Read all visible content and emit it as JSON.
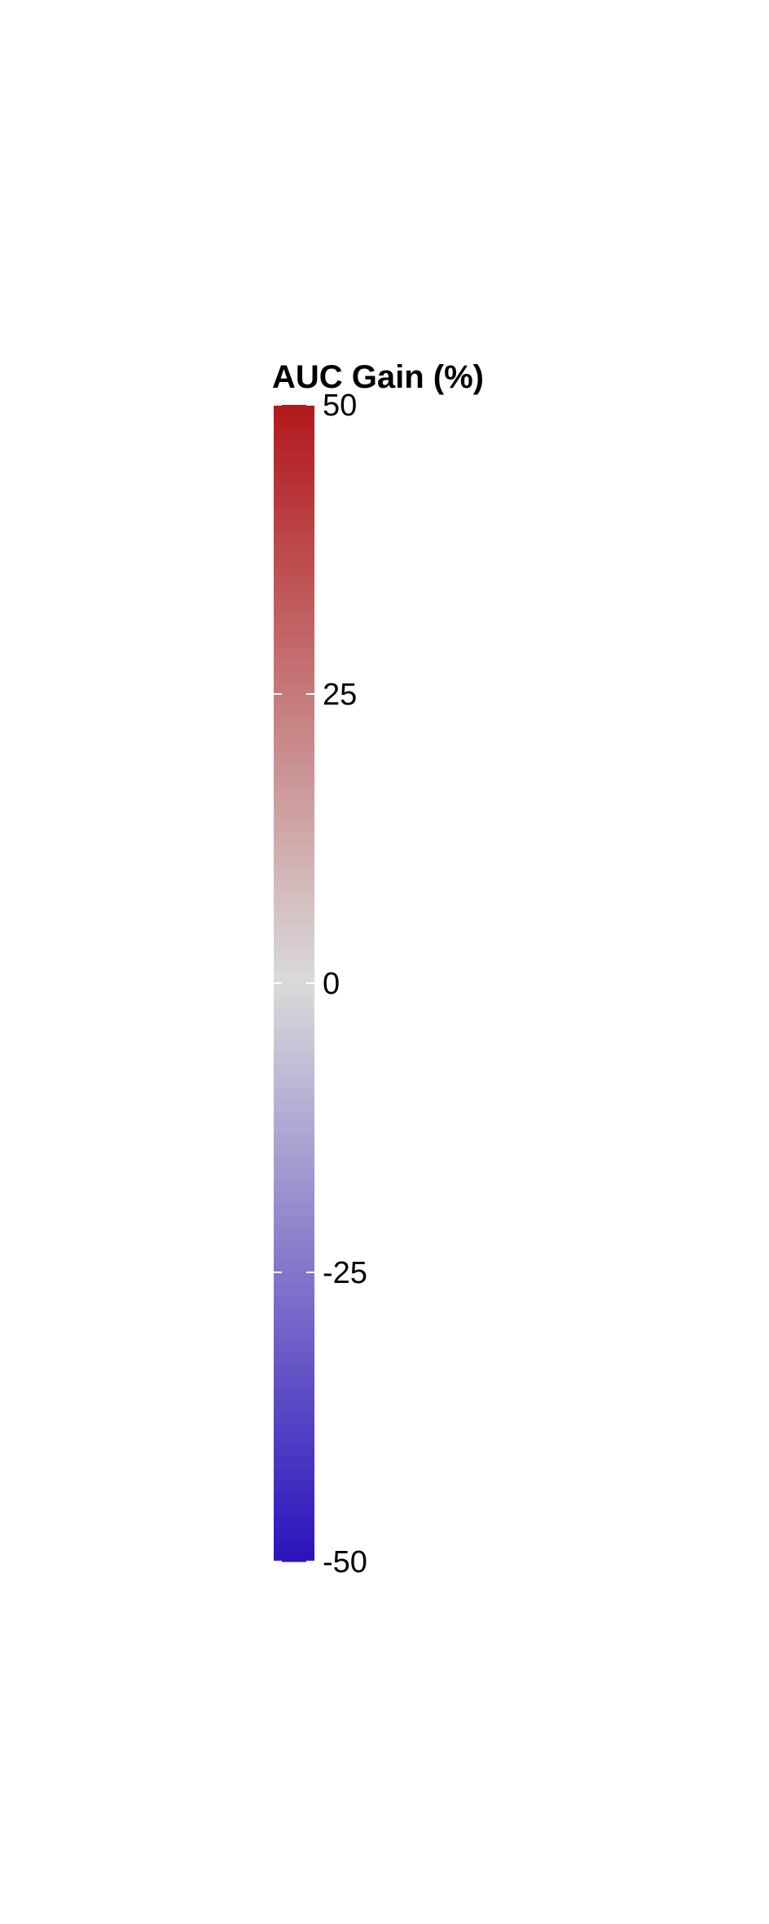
{
  "chart_data": {
    "type": "heatmap",
    "legend": {
      "title": "AUC Gain (%)",
      "range": [
        -50,
        50
      ],
      "ticks": [
        50,
        25,
        0,
        -25,
        -50
      ],
      "tick_labels": [
        "50",
        "25",
        "0",
        "-25",
        "-50"
      ],
      "colors": {
        "high": "#B2181B",
        "mid": "#DADADA",
        "low": "#2A13BD"
      }
    }
  }
}
